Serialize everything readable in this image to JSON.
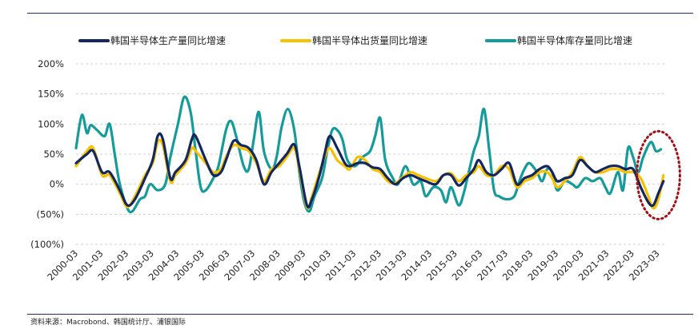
{
  "source": "资料来源：Macrobond、韩国统计厅、浦银国际",
  "chart_data": {
    "type": "line",
    "title": "",
    "xlabel": "",
    "ylabel": "",
    "ylim": [
      -100,
      200
    ],
    "yticks": [
      {
        "value": 200,
        "label": "200%"
      },
      {
        "value": 150,
        "label": "150%"
      },
      {
        "value": 100,
        "label": "100%"
      },
      {
        "value": 50,
        "label": "50%"
      },
      {
        "value": 0,
        "label": "0%"
      },
      {
        "value": -50,
        "label": "(50%)"
      },
      {
        "value": -100,
        "label": "(100%)"
      }
    ],
    "xlim": [
      2000.17,
      2023.5
    ],
    "xticks": [
      "2000-03",
      "2001-03",
      "2002-03",
      "2003-03",
      "2004-03",
      "2005-03",
      "2006-03",
      "2007-03",
      "2008-03",
      "2009-03",
      "2010-03",
      "2011-03",
      "2012-03",
      "2013-03",
      "2014-03",
      "2015-03",
      "2016-03",
      "2017-03",
      "2018-03",
      "2019-03",
      "2020-03",
      "2021-03",
      "2022-03",
      "2023-03"
    ],
    "grid": "horizontal-dashed",
    "legend": "top",
    "annotation": {
      "shape": "dotted-ellipse",
      "color": "#a50f15",
      "x_center": 2023.2,
      "y_center": 15,
      "x_radius": 0.85,
      "y_radius": 73
    },
    "series": [
      {
        "name": "韩国半导体生产量同比增速",
        "color": "#14275e",
        "points": [
          [
            2000.17,
            35
          ],
          [
            2000.6,
            50
          ],
          [
            2000.85,
            55
          ],
          [
            2001.2,
            20
          ],
          [
            2001.5,
            20
          ],
          [
            2001.9,
            -10
          ],
          [
            2002.2,
            -35
          ],
          [
            2002.5,
            -25
          ],
          [
            2002.9,
            10
          ],
          [
            2003.2,
            40
          ],
          [
            2003.4,
            80
          ],
          [
            2003.6,
            75
          ],
          [
            2003.9,
            10
          ],
          [
            2004.1,
            20
          ],
          [
            2004.5,
            40
          ],
          [
            2004.75,
            75
          ],
          [
            2004.9,
            80
          ],
          [
            2005.3,
            40
          ],
          [
            2005.6,
            15
          ],
          [
            2005.9,
            20
          ],
          [
            2006.1,
            40
          ],
          [
            2006.4,
            72
          ],
          [
            2006.7,
            65
          ],
          [
            2007.0,
            60
          ],
          [
            2007.3,
            40
          ],
          [
            2007.6,
            0
          ],
          [
            2007.9,
            20
          ],
          [
            2008.2,
            35
          ],
          [
            2008.5,
            50
          ],
          [
            2008.8,
            66
          ],
          [
            2009.0,
            30
          ],
          [
            2009.3,
            -35
          ],
          [
            2009.5,
            -25
          ],
          [
            2009.8,
            15
          ],
          [
            2010.0,
            50
          ],
          [
            2010.2,
            80
          ],
          [
            2010.5,
            60
          ],
          [
            2010.8,
            35
          ],
          [
            2011.0,
            30
          ],
          [
            2011.3,
            35
          ],
          [
            2011.6,
            35
          ],
          [
            2011.9,
            28
          ],
          [
            2012.2,
            25
          ],
          [
            2012.5,
            10
          ],
          [
            2012.8,
            0
          ],
          [
            2013.1,
            10
          ],
          [
            2013.4,
            15
          ],
          [
            2013.7,
            10
          ],
          [
            2014.0,
            5
          ],
          [
            2014.4,
            0
          ],
          [
            2014.7,
            15
          ],
          [
            2015.0,
            15
          ],
          [
            2015.3,
            -2
          ],
          [
            2015.6,
            10
          ],
          [
            2015.9,
            25
          ],
          [
            2016.1,
            40
          ],
          [
            2016.4,
            20
          ],
          [
            2016.7,
            15
          ],
          [
            2017.0,
            25
          ],
          [
            2017.3,
            35
          ],
          [
            2017.6,
            0
          ],
          [
            2017.9,
            10
          ],
          [
            2018.2,
            15
          ],
          [
            2018.5,
            25
          ],
          [
            2018.8,
            30
          ],
          [
            2019.0,
            20
          ],
          [
            2019.2,
            5
          ],
          [
            2019.5,
            10
          ],
          [
            2019.8,
            15
          ],
          [
            2020.1,
            40
          ],
          [
            2020.4,
            30
          ],
          [
            2020.7,
            20
          ],
          [
            2021.0,
            25
          ],
          [
            2021.3,
            30
          ],
          [
            2021.6,
            30
          ],
          [
            2021.9,
            25
          ],
          [
            2022.2,
            25
          ],
          [
            2022.5,
            -5
          ],
          [
            2022.8,
            -30
          ],
          [
            2023.0,
            -35
          ],
          [
            2023.2,
            -15
          ],
          [
            2023.4,
            5
          ]
        ]
      },
      {
        "name": "韩国半导体出货量同比增速",
        "color": "#f7c100",
        "points": [
          [
            2000.17,
            30
          ],
          [
            2000.6,
            55
          ],
          [
            2000.85,
            60
          ],
          [
            2001.2,
            15
          ],
          [
            2001.5,
            15
          ],
          [
            2001.9,
            -15
          ],
          [
            2002.2,
            -38
          ],
          [
            2002.5,
            -20
          ],
          [
            2002.9,
            15
          ],
          [
            2003.2,
            35
          ],
          [
            2003.4,
            70
          ],
          [
            2003.6,
            65
          ],
          [
            2003.9,
            5
          ],
          [
            2004.1,
            15
          ],
          [
            2004.5,
            35
          ],
          [
            2004.75,
            60
          ],
          [
            2004.9,
            55
          ],
          [
            2005.3,
            35
          ],
          [
            2005.6,
            20
          ],
          [
            2005.9,
            25
          ],
          [
            2006.1,
            45
          ],
          [
            2006.4,
            65
          ],
          [
            2006.7,
            60
          ],
          [
            2007.0,
            55
          ],
          [
            2007.3,
            35
          ],
          [
            2007.6,
            5
          ],
          [
            2007.9,
            25
          ],
          [
            2008.2,
            30
          ],
          [
            2008.5,
            45
          ],
          [
            2008.8,
            60
          ],
          [
            2009.0,
            25
          ],
          [
            2009.3,
            -38
          ],
          [
            2009.5,
            -20
          ],
          [
            2009.8,
            20
          ],
          [
            2010.0,
            45
          ],
          [
            2010.2,
            60
          ],
          [
            2010.5,
            40
          ],
          [
            2010.8,
            30
          ],
          [
            2011.0,
            25
          ],
          [
            2011.3,
            45
          ],
          [
            2011.6,
            40
          ],
          [
            2011.9,
            25
          ],
          [
            2012.2,
            20
          ],
          [
            2012.5,
            5
          ],
          [
            2012.8,
            2
          ],
          [
            2013.1,
            12
          ],
          [
            2013.4,
            20
          ],
          [
            2013.7,
            15
          ],
          [
            2014.0,
            10
          ],
          [
            2014.4,
            5
          ],
          [
            2014.7,
            15
          ],
          [
            2015.0,
            18
          ],
          [
            2015.3,
            5
          ],
          [
            2015.6,
            15
          ],
          [
            2015.9,
            20
          ],
          [
            2016.1,
            30
          ],
          [
            2016.4,
            15
          ],
          [
            2016.7,
            15
          ],
          [
            2017.0,
            30
          ],
          [
            2017.3,
            25
          ],
          [
            2017.6,
            -5
          ],
          [
            2017.9,
            5
          ],
          [
            2018.2,
            10
          ],
          [
            2018.5,
            20
          ],
          [
            2018.8,
            20
          ],
          [
            2019.0,
            10
          ],
          [
            2019.2,
            -5
          ],
          [
            2019.5,
            5
          ],
          [
            2019.8,
            20
          ],
          [
            2020.1,
            45
          ],
          [
            2020.4,
            30
          ],
          [
            2020.7,
            20
          ],
          [
            2021.0,
            20
          ],
          [
            2021.3,
            25
          ],
          [
            2021.6,
            25
          ],
          [
            2021.9,
            20
          ],
          [
            2022.2,
            20
          ],
          [
            2022.5,
            10
          ],
          [
            2022.8,
            -20
          ],
          [
            2023.0,
            -40
          ],
          [
            2023.2,
            -25
          ],
          [
            2023.4,
            15
          ]
        ]
      },
      {
        "name": "韩国半导体库存量同比增速",
        "color": "#149b9a",
        "points": [
          [
            2000.17,
            60
          ],
          [
            2000.4,
            115
          ],
          [
            2000.6,
            85
          ],
          [
            2000.75,
            98
          ],
          [
            2001.0,
            90
          ],
          [
            2001.3,
            80
          ],
          [
            2001.5,
            100
          ],
          [
            2001.7,
            50
          ],
          [
            2001.9,
            0
          ],
          [
            2002.2,
            -40
          ],
          [
            2002.4,
            -45
          ],
          [
            2002.7,
            -25
          ],
          [
            2002.9,
            -20
          ],
          [
            2003.1,
            0
          ],
          [
            2003.4,
            -10
          ],
          [
            2003.7,
            0
          ],
          [
            2003.9,
            45
          ],
          [
            2004.2,
            100
          ],
          [
            2004.45,
            145
          ],
          [
            2004.7,
            120
          ],
          [
            2004.9,
            55
          ],
          [
            2005.1,
            -5
          ],
          [
            2005.3,
            -10
          ],
          [
            2005.6,
            10
          ],
          [
            2005.8,
            30
          ],
          [
            2006.1,
            90
          ],
          [
            2006.3,
            105
          ],
          [
            2006.5,
            80
          ],
          [
            2006.8,
            30
          ],
          [
            2007.0,
            25
          ],
          [
            2007.2,
            75
          ],
          [
            2007.4,
            120
          ],
          [
            2007.6,
            55
          ],
          [
            2007.9,
            25
          ],
          [
            2008.1,
            45
          ],
          [
            2008.3,
            95
          ],
          [
            2008.55,
            125
          ],
          [
            2008.8,
            90
          ],
          [
            2009.0,
            20
          ],
          [
            2009.2,
            -30
          ],
          [
            2009.4,
            -45
          ],
          [
            2009.6,
            -20
          ],
          [
            2009.9,
            10
          ],
          [
            2010.1,
            55
          ],
          [
            2010.3,
            90
          ],
          [
            2010.5,
            90
          ],
          [
            2010.7,
            75
          ],
          [
            2010.9,
            40
          ],
          [
            2011.2,
            30
          ],
          [
            2011.5,
            45
          ],
          [
            2011.8,
            55
          ],
          [
            2012.0,
            80
          ],
          [
            2012.2,
            110
          ],
          [
            2012.4,
            40
          ],
          [
            2012.7,
            10
          ],
          [
            2012.9,
            0
          ],
          [
            2013.2,
            30
          ],
          [
            2013.5,
            0
          ],
          [
            2013.8,
            5
          ],
          [
            2014.0,
            -20
          ],
          [
            2014.3,
            -5
          ],
          [
            2014.6,
            -10
          ],
          [
            2014.8,
            -30
          ],
          [
            2015.0,
            -5
          ],
          [
            2015.3,
            -35
          ],
          [
            2015.5,
            -15
          ],
          [
            2015.7,
            20
          ],
          [
            2015.9,
            55
          ],
          [
            2016.1,
            80
          ],
          [
            2016.3,
            125
          ],
          [
            2016.5,
            60
          ],
          [
            2016.7,
            -10
          ],
          [
            2016.9,
            -20
          ],
          [
            2017.2,
            -25
          ],
          [
            2017.5,
            -20
          ],
          [
            2017.7,
            5
          ],
          [
            2017.9,
            25
          ],
          [
            2018.1,
            35
          ],
          [
            2018.4,
            20
          ],
          [
            2018.6,
            5
          ],
          [
            2018.8,
            25
          ],
          [
            2019.0,
            20
          ],
          [
            2019.2,
            -10
          ],
          [
            2019.5,
            5
          ],
          [
            2019.8,
            0
          ],
          [
            2020.0,
            -5
          ],
          [
            2020.3,
            10
          ],
          [
            2020.6,
            5
          ],
          [
            2020.9,
            10
          ],
          [
            2021.1,
            -5
          ],
          [
            2021.3,
            -15
          ],
          [
            2021.6,
            20
          ],
          [
            2021.8,
            -10
          ],
          [
            2022.0,
            60
          ],
          [
            2022.2,
            45
          ],
          [
            2022.4,
            20
          ],
          [
            2022.6,
            45
          ],
          [
            2022.9,
            70
          ],
          [
            2023.1,
            55
          ],
          [
            2023.3,
            58
          ]
        ]
      }
    ]
  }
}
